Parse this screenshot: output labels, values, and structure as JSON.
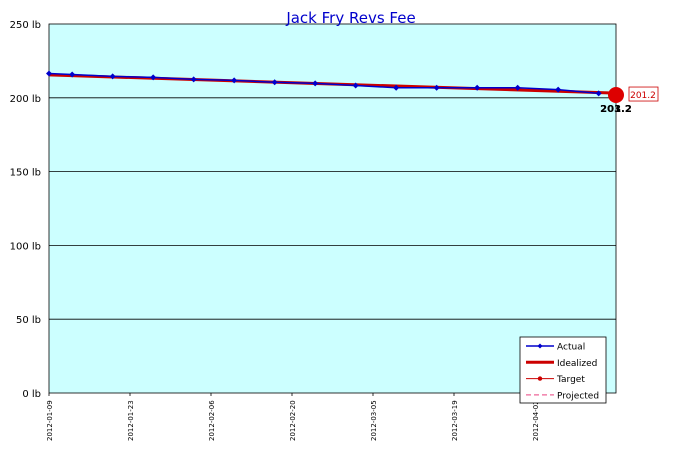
{
  "chart_data": {
    "type": "line",
    "title": "Jack Fry Revs Fee",
    "y_unit": "lb",
    "ylim": [
      0,
      250
    ],
    "y_ticks": [
      "0 lb",
      "50 lb",
      "100 lb",
      "150 lb",
      "200 lb",
      "250 lb"
    ],
    "xlim": [
      "2012-01-09",
      "2012-04-16"
    ],
    "x_ticks": [
      "2012-01-09",
      "2012-01-23",
      "2012-02-06",
      "2012-02-20",
      "2012-03-05",
      "2012-03-19",
      "2012-04-02"
    ],
    "grid": true,
    "legend_position": "bottom-right",
    "series": [
      {
        "name": "Actual",
        "color": "#0000cc",
        "x": [
          "2012-01-09",
          "2012-01-13",
          "2012-01-20",
          "2012-01-27",
          "2012-02-03",
          "2012-02-10",
          "2012-02-17",
          "2012-02-24",
          "2012-03-02",
          "2012-03-09",
          "2012-03-16",
          "2012-03-23",
          "2012-03-30",
          "2012-04-06",
          "2012-04-13"
        ],
        "y": [
          216.5,
          215.8,
          214.5,
          213.8,
          212.5,
          211.8,
          210.5,
          209.8,
          208.3,
          206.8,
          206.8,
          206.8,
          206.8,
          205.5,
          203.0
        ]
      },
      {
        "name": "Idealized",
        "color": "#cc0000",
        "x": [
          "2012-01-09",
          "2012-04-16"
        ],
        "y": [
          215.5,
          203.2
        ]
      },
      {
        "name": "Target",
        "color": "#cc0000",
        "x": [
          "2012-04-16"
        ],
        "y": [
          201.2
        ]
      },
      {
        "name": "Projected",
        "color": "#ee6699",
        "x": [],
        "y": []
      }
    ],
    "annotations": {
      "end_labels": [
        "203.2",
        "201.2"
      ],
      "callout": "201.2"
    }
  },
  "colors": {
    "plot_bg": "#ccffff",
    "grid": "#000000"
  }
}
